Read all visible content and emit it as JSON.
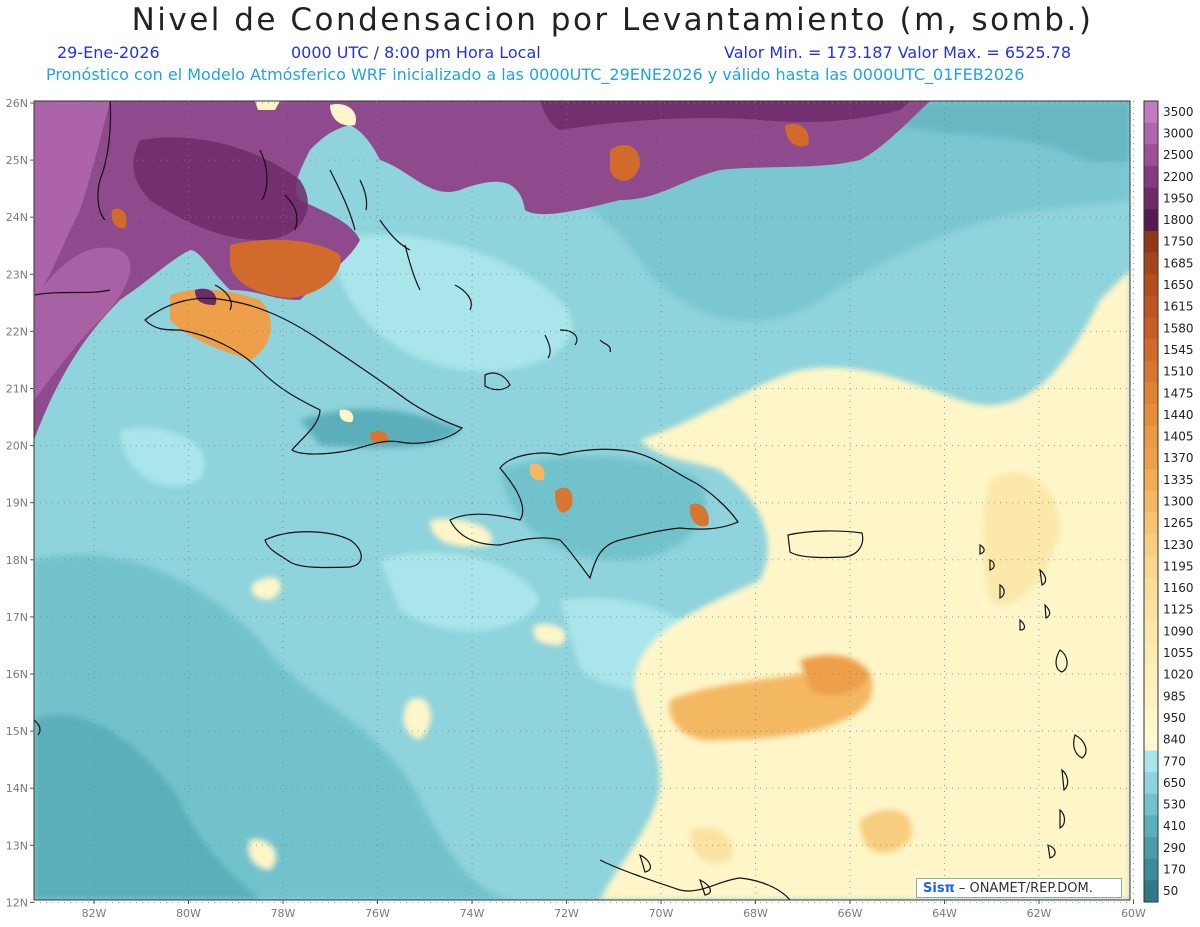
{
  "header": {
    "title": "Nivel de Condensacion por Levantamiento (m, somb.)",
    "date": "29-Ene-2026",
    "time": "0000 UTC / 8:00 pm Hora Local",
    "minmax": "Valor Min. = 173.187   Valor Max. = 6525.78",
    "model_line": "Pronóstico con el Modelo Atmósferico WRF inicializado a las 0000UTC_29ENE2026 y válido hasta las  0000UTC_01FEB2026"
  },
  "map": {
    "lat_labels": [
      "26N",
      "25N",
      "24N",
      "23N",
      "22N",
      "21N",
      "20N",
      "19N",
      "18N",
      "17N",
      "16N",
      "15N",
      "14N",
      "13N",
      "12N"
    ],
    "lon_labels": [
      "82W",
      "80W",
      "78W",
      "76W",
      "74W",
      "72W",
      "70W",
      "68W",
      "66W",
      "64W",
      "62W",
      "60W"
    ]
  },
  "colorbar": {
    "labels": [
      "3500",
      "3000",
      "2500",
      "2200",
      "1950",
      "1800",
      "1750",
      "1685",
      "1650",
      "1615",
      "1580",
      "1545",
      "1510",
      "1475",
      "1440",
      "1405",
      "1370",
      "1335",
      "1300",
      "1265",
      "1230",
      "1195",
      "1160",
      "1125",
      "1090",
      "1055",
      "1020",
      "985",
      "950",
      "840",
      "770",
      "650",
      "530",
      "410",
      "290",
      "170",
      "50"
    ],
    "colors": [
      "#c47ac0",
      "#b066ad",
      "#9a4f96",
      "#843a80",
      "#6f2a68",
      "#561a4e",
      "#8e3a18",
      "#a4461c",
      "#b24e1f",
      "#bd5623",
      "#c85e27",
      "#d26a2c",
      "#d87631",
      "#de8236",
      "#e48e3c",
      "#e99a44",
      "#ee9f49",
      "#f1ac55",
      "#f4b864",
      "#f6c472",
      "#f7cd80",
      "#f8d68d",
      "#f9dd98",
      "#fae3a2",
      "#fbe8aa",
      "#fcecb2",
      "#fdf0ba",
      "#fdf3c1",
      "#fef6c8",
      "#fef9cf",
      "#a9e5ea",
      "#8ed4dc",
      "#72c2cc",
      "#5aafbb",
      "#4b9cab",
      "#3c8a9a",
      "#2e7888"
    ]
  },
  "credit": {
    "logo": "Sisπ",
    "text": "– ONAMET/REP.DOM."
  }
}
